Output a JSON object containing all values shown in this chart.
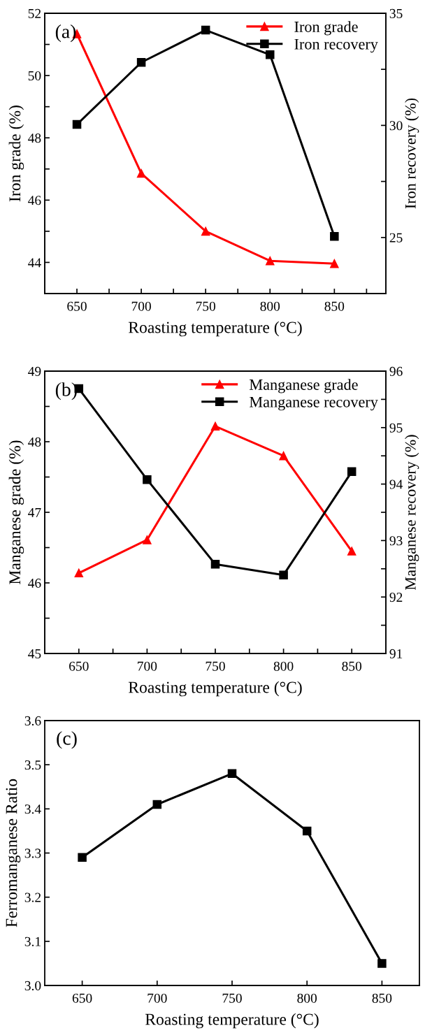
{
  "chart_data": [
    {
      "type": "line",
      "x": [
        650,
        700,
        750,
        800,
        850
      ],
      "xlabel": "Roasting temperature (°C)",
      "ylabel": "Iron grade (%)",
      "y2label": "Iron recovery (%)",
      "annotations": [
        "(a)"
      ],
      "legend": "top right",
      "xlim": [
        625,
        890
      ],
      "xticks": [
        650,
        {
          "value": 675,
          "label": null
        },
        700,
        {
          "value": 725,
          "label": null
        },
        750,
        {
          "value": 775,
          "label": null
        },
        800,
        {
          "value": 825,
          "label": null
        },
        850,
        {
          "value": 875,
          "label": null
        }
      ],
      "ylim": [
        43,
        52
      ],
      "yticks": [
        {
          "value": 43,
          "label": null
        },
        44,
        {
          "value": 45,
          "label": null
        },
        46,
        {
          "value": 47,
          "label": null
        },
        48,
        {
          "value": 49,
          "label": null
        },
        50,
        {
          "value": 51,
          "label": null
        },
        52
      ],
      "y2lim": [
        22.5,
        35
      ],
      "y2ticks": [
        {
          "value": 22.5,
          "label": null
        },
        25,
        {
          "value": 27.5,
          "label": null
        },
        30,
        {
          "value": 32.5,
          "label": null
        },
        35
      ],
      "series": [
        {
          "name": "Iron grade",
          "color": "#ff0000",
          "marker": "triangle",
          "values": [
            51.34,
            46.86,
            45.0,
            44.05,
            43.96
          ]
        },
        {
          "name": "Iron recovery",
          "color": "#000000",
          "marker": "square",
          "axis": "y2",
          "values": [
            30.04,
            32.81,
            34.25,
            33.15,
            25.05
          ]
        }
      ]
    },
    {
      "type": "line",
      "x": [
        650,
        700,
        750,
        800,
        850
      ],
      "xlabel": "Roasting temperature (°C)",
      "ylabel": "Manganese grade (%)",
      "y2label": "Manganese recovery (%)",
      "annotations": [
        "(b)"
      ],
      "legend": "top right",
      "xlim": [
        625,
        875
      ],
      "xticks": [
        650,
        {
          "value": 675,
          "label": null
        },
        700,
        {
          "value": 725,
          "label": null
        },
        750,
        {
          "value": 775,
          "label": null
        },
        800,
        {
          "value": 825,
          "label": null
        },
        850
      ],
      "ylim": [
        45,
        49
      ],
      "yticks": [
        45,
        {
          "value": 45.5,
          "label": null
        },
        46,
        {
          "value": 46.5,
          "label": null
        },
        47,
        {
          "value": 47.5,
          "label": null
        },
        48,
        {
          "value": 48.5,
          "label": null
        },
        49
      ],
      "y2lim": [
        91,
        96
      ],
      "y2ticks": [
        91,
        {
          "value": 91.5,
          "label": null
        },
        92,
        {
          "value": 92.5,
          "label": null
        },
        93,
        {
          "value": 93.5,
          "label": null
        },
        94,
        {
          "value": 94.5,
          "label": null
        },
        95,
        {
          "value": 95.5,
          "label": null
        },
        96
      ],
      "series": [
        {
          "name": "Manganese grade",
          "color": "#ff0000",
          "marker": "triangle",
          "values": [
            46.14,
            46.61,
            48.22,
            47.8,
            46.45
          ]
        },
        {
          "name": "Manganese recovery",
          "color": "#000000",
          "marker": "square",
          "axis": "y2",
          "values": [
            95.69,
            94.08,
            92.58,
            92.39,
            94.22
          ]
        }
      ]
    },
    {
      "type": "line",
      "x": [
        650,
        700,
        750,
        800,
        850
      ],
      "xlabel": "Roasting temperature (°C)",
      "ylabel": "Ferromanganese Ratio",
      "annotations": [
        "(c)"
      ],
      "xlim": [
        625,
        875
      ],
      "xticks": [
        650,
        700,
        750,
        800,
        850
      ],
      "ylim": [
        3.0,
        3.6
      ],
      "yticks": [
        {
          "value": 3.0,
          "label": "3.0"
        },
        3.1,
        3.2,
        3.3,
        3.4,
        3.5,
        3.6
      ],
      "series": [
        {
          "color": "#000000",
          "marker": "square",
          "values": [
            3.29,
            3.41,
            3.48,
            3.35,
            3.05
          ]
        }
      ]
    }
  ]
}
